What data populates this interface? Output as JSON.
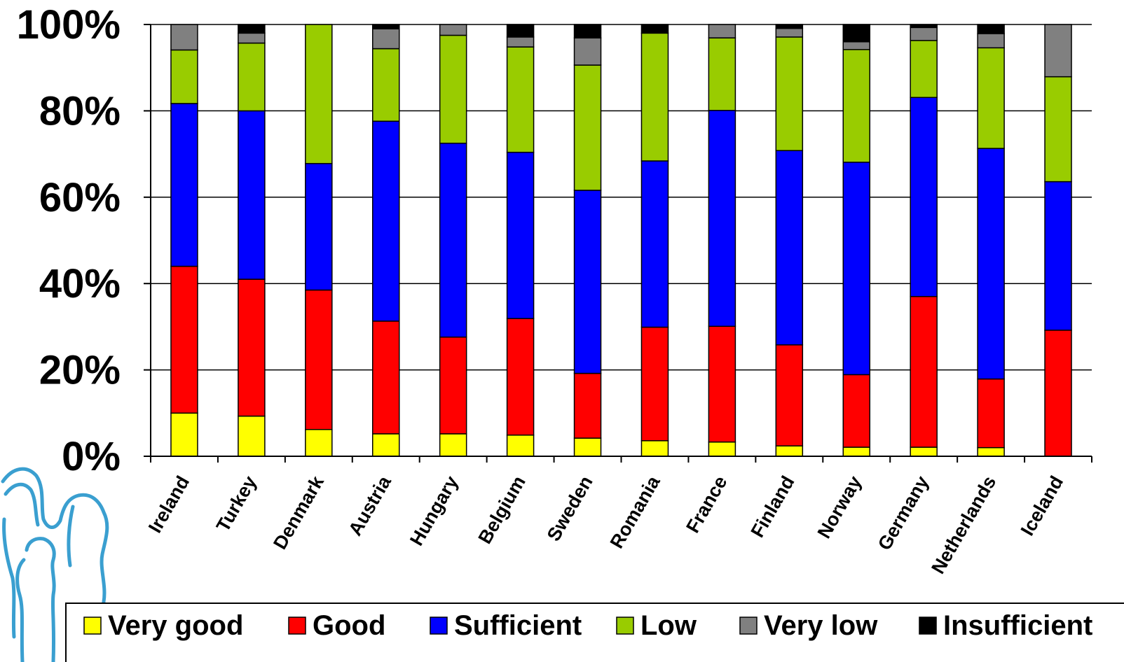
{
  "chart_data": {
    "type": "bar",
    "stacked": true,
    "percent": true,
    "title": "",
    "xlabel": "",
    "ylabel": "",
    "ylim": [
      0,
      100
    ],
    "yticks": [
      "0%",
      "20%",
      "40%",
      "60%",
      "80%",
      "100%"
    ],
    "grid": true,
    "legend_position": "bottom",
    "categories": [
      "Ireland",
      "Turkey",
      "Denmark",
      "Austria",
      "Hungary",
      "Belgium",
      "Sweden",
      "Romania",
      "France",
      "Finland",
      "Norway",
      "Germany",
      "Netherlands",
      "Iceland"
    ],
    "series": [
      {
        "name": "Very good",
        "color": "#ffff00",
        "values": [
          10.0,
          9.3,
          6.2,
          5.2,
          5.2,
          4.9,
          4.2,
          3.6,
          3.3,
          2.4,
          2.1,
          2.1,
          2.0,
          0.0
        ]
      },
      {
        "name": "Good",
        "color": "#ff0000",
        "values": [
          34.0,
          31.7,
          32.3,
          26.1,
          22.4,
          27.0,
          15.0,
          26.3,
          26.8,
          23.4,
          16.8,
          34.9,
          15.9,
          29.2
        ]
      },
      {
        "name": "Sufficient",
        "color": "#0000ff",
        "values": [
          37.7,
          39.0,
          29.3,
          46.3,
          44.9,
          38.5,
          42.4,
          38.5,
          50.0,
          45.0,
          49.2,
          46.1,
          53.4,
          34.4
        ]
      },
      {
        "name": "Low",
        "color": "#99cc00",
        "values": [
          12.4,
          15.7,
          32.2,
          16.8,
          25.0,
          24.4,
          29.0,
          29.6,
          16.8,
          26.3,
          26.1,
          13.2,
          23.3,
          24.3
        ]
      },
      {
        "name": "Very low",
        "color": "#808080",
        "values": [
          5.9,
          2.3,
          0.0,
          4.6,
          2.5,
          2.3,
          6.3,
          0.0,
          3.1,
          2.0,
          1.8,
          3.0,
          3.3,
          12.1
        ]
      },
      {
        "name": "Insufficient",
        "color": "#000000",
        "values": [
          0.0,
          2.0,
          0.0,
          1.0,
          0.0,
          2.9,
          3.1,
          2.0,
          0.0,
          0.9,
          4.0,
          0.7,
          2.1,
          0.0
        ]
      }
    ]
  }
}
